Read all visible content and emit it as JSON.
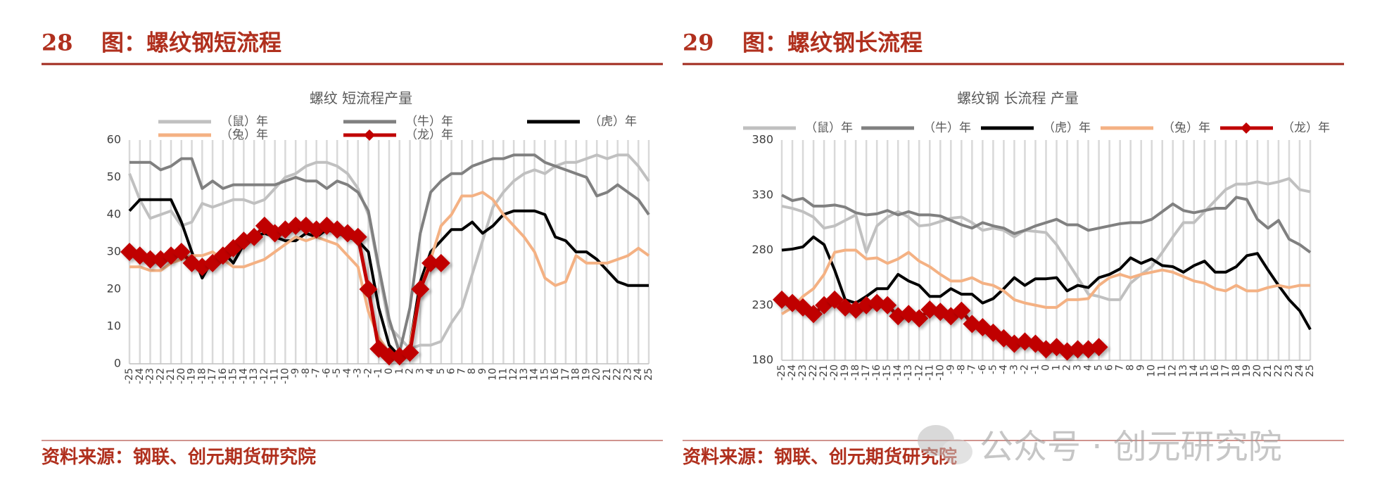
{
  "chart_data": [
    {
      "type": "line",
      "figure_number": "28",
      "figure_title": "图：螺纹钢短流程",
      "title": "螺纹 短流程产量",
      "source": "资料来源：钢联、创元期货研究院",
      "categories": [
        "-25",
        "-24",
        "-23",
        "-22",
        "-21",
        "-20",
        "-19",
        "-18",
        "-17",
        "-16",
        "-15",
        "-14",
        "-13",
        "-12",
        "-11",
        "-10",
        "-9",
        "-8",
        "-7",
        "-6",
        "-5",
        "-4",
        "-3",
        "-2",
        "-1",
        "0",
        "1",
        "2",
        "3",
        "4",
        "5",
        "6",
        "7",
        "8",
        "9",
        "10",
        "11",
        "12",
        "13",
        "14",
        "15",
        "16",
        "17",
        "18",
        "19",
        "20",
        "21",
        "22",
        "23",
        "24",
        "25"
      ],
      "ylim": [
        0,
        60
      ],
      "yticks": [
        0,
        10,
        20,
        30,
        40,
        50,
        60
      ],
      "grid": "x",
      "series": [
        {
          "name": "（鼠）年",
          "color": "#c0c0c0",
          "values": [
            51,
            44,
            39,
            40,
            41,
            37,
            38,
            43,
            42,
            43,
            44,
            44,
            43,
            44,
            47,
            50,
            51,
            53,
            54,
            54,
            53,
            51,
            47,
            40,
            25,
            10,
            7,
            4,
            5,
            5,
            6,
            11,
            15,
            24,
            33,
            42,
            46,
            49,
            51,
            52,
            51,
            53,
            54,
            54,
            55,
            56,
            55,
            56,
            56,
            53,
            49
          ]
        },
        {
          "name": "（牛）年",
          "color": "#808080",
          "values": [
            54,
            54,
            54,
            52,
            53,
            55,
            55,
            47,
            49,
            47,
            48,
            48,
            48,
            48,
            48,
            49,
            50,
            49,
            49,
            47,
            49,
            48,
            46,
            41,
            26,
            12,
            3,
            15,
            35,
            46,
            49,
            51,
            51,
            53,
            54,
            55,
            55,
            56,
            56,
            56,
            54,
            53,
            52,
            51,
            50,
            45,
            46,
            48,
            46,
            44,
            40
          ]
        },
        {
          "name": "（虎）年",
          "color": "#000000",
          "values": [
            41,
            44,
            44,
            44,
            44,
            38,
            30,
            23,
            28,
            30,
            27,
            32,
            34,
            35,
            34,
            33,
            33,
            35,
            34,
            36,
            35,
            34,
            33,
            30,
            15,
            5,
            2,
            5,
            22,
            30,
            33,
            36,
            36,
            38,
            35,
            37,
            40,
            41,
            41,
            41,
            40,
            34,
            33,
            30,
            30,
            28,
            25,
            22,
            21,
            21,
            21
          ]
        },
        {
          "name": "（兔）年",
          "color": "#f4b183",
          "values": [
            26,
            26,
            25,
            25,
            27,
            28,
            29,
            29,
            30,
            28,
            26,
            26,
            27,
            28,
            30,
            32,
            34,
            33,
            34,
            33,
            32,
            29,
            26,
            14,
            7,
            3,
            2,
            5,
            20,
            28,
            37,
            40,
            45,
            45,
            46,
            44,
            40,
            37,
            34,
            30,
            23,
            21,
            22,
            29,
            27,
            27,
            27,
            28,
            29,
            31,
            29
          ]
        },
        {
          "name": "（龙）年",
          "color": "#c00000",
          "marker": "diamond",
          "values": [
            30,
            29,
            28,
            28,
            29,
            30,
            27,
            26,
            27,
            29,
            31,
            33,
            34,
            37,
            35,
            36,
            37,
            37,
            36,
            37,
            36,
            35,
            34,
            20,
            4,
            2,
            2,
            3,
            20,
            27,
            27,
            null,
            null,
            null,
            null,
            null,
            null,
            null,
            null,
            null,
            null,
            null,
            null,
            null,
            null,
            null,
            null,
            null,
            null,
            null,
            null
          ]
        }
      ]
    },
    {
      "type": "line",
      "figure_number": "29",
      "figure_title": "图：螺纹钢长流程",
      "title": "螺纹钢 长流程 产量",
      "source": "资料来源：钢联、创元期货研究院",
      "categories": [
        "-25",
        "-24",
        "-23",
        "-22",
        "-21",
        "-20",
        "-19",
        "-18",
        "-17",
        "-16",
        "-15",
        "-14",
        "-13",
        "-12",
        "-11",
        "-10",
        "-9",
        "-8",
        "-7",
        "-6",
        "-5",
        "-4",
        "-3",
        "-2",
        "-1",
        "0",
        "1",
        "2",
        "3",
        "4",
        "5",
        "6",
        "7",
        "8",
        "9",
        "10",
        "11",
        "12",
        "13",
        "14",
        "15",
        "16",
        "17",
        "18",
        "19",
        "20",
        "21",
        "22",
        "23",
        "24",
        "25"
      ],
      "ylim": [
        180,
        380
      ],
      "yticks": [
        180,
        230,
        280,
        330,
        380
      ],
      "grid": "x",
      "series": [
        {
          "name": "（鼠）年",
          "color": "#c0c0c0",
          "values": [
            320,
            318,
            315,
            310,
            300,
            302,
            307,
            312,
            278,
            302,
            310,
            315,
            310,
            302,
            303,
            306,
            309,
            310,
            305,
            298,
            300,
            298,
            292,
            298,
            297,
            296,
            285,
            270,
            255,
            240,
            238,
            235,
            235,
            250,
            258,
            265,
            278,
            292,
            305,
            305,
            315,
            325,
            335,
            340,
            340,
            342,
            340,
            342,
            345,
            335,
            333
          ]
        },
        {
          "name": "（牛）年",
          "color": "#808080",
          "values": [
            330,
            325,
            327,
            320,
            320,
            321,
            319,
            314,
            312,
            313,
            316,
            312,
            315,
            312,
            312,
            311,
            307,
            303,
            300,
            305,
            302,
            300,
            295,
            298,
            302,
            305,
            308,
            303,
            303,
            298,
            300,
            302,
            304,
            305,
            305,
            308,
            315,
            322,
            316,
            314,
            316,
            318,
            318,
            328,
            326,
            308,
            300,
            307,
            290,
            285,
            278
          ]
        },
        {
          "name": "（虎）年",
          "color": "#000000",
          "values": [
            280,
            281,
            283,
            292,
            285,
            262,
            235,
            232,
            238,
            245,
            245,
            258,
            252,
            248,
            238,
            238,
            245,
            240,
            240,
            232,
            236,
            245,
            255,
            248,
            254,
            254,
            255,
            243,
            248,
            246,
            255,
            258,
            263,
            273,
            268,
            272,
            266,
            265,
            260,
            266,
            270,
            260,
            260,
            265,
            275,
            277,
            262,
            248,
            235,
            225,
            208
          ]
        },
        {
          "name": "（兔）年",
          "color": "#f4b183",
          "values": [
            222,
            228,
            238,
            245,
            258,
            278,
            280,
            280,
            272,
            273,
            268,
            272,
            278,
            270,
            265,
            258,
            252,
            252,
            255,
            250,
            248,
            243,
            235,
            232,
            230,
            228,
            228,
            235,
            235,
            236,
            248,
            255,
            258,
            255,
            258,
            260,
            262,
            260,
            256,
            252,
            250,
            245,
            243,
            248,
            243,
            243,
            246,
            248,
            246,
            248,
            248
          ]
        },
        {
          "name": "（龙）年",
          "color": "#c00000",
          "marker": "diamond",
          "values": [
            235,
            232,
            228,
            222,
            230,
            235,
            228,
            226,
            230,
            232,
            230,
            220,
            222,
            218,
            226,
            224,
            220,
            225,
            213,
            210,
            205,
            200,
            195,
            197,
            195,
            190,
            192,
            188,
            190,
            190,
            192,
            null,
            null,
            null,
            null,
            null,
            null,
            null,
            null,
            null,
            null,
            null,
            null,
            null,
            null,
            null,
            null,
            null,
            null,
            null,
            null
          ]
        }
      ]
    }
  ],
  "watermark": "公众号 · 创元研究院"
}
